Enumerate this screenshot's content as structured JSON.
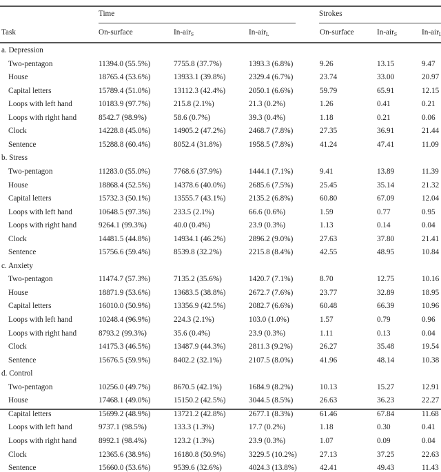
{
  "table": {
    "group_headers": {
      "time": "Time",
      "strokes": "Strokes"
    },
    "columns": {
      "task": "Task",
      "time_on_surface": "On-surface",
      "time_in_air_s": {
        "base": "In-air",
        "sub": "S"
      },
      "time_in_air_l": {
        "base": "In-air",
        "sub": "L"
      },
      "strokes_on_surface": "On-surface",
      "strokes_in_air_s": {
        "base": "In-air",
        "sub": "S"
      },
      "strokes_in_air_l": {
        "base": "In-air",
        "sub": "L"
      }
    },
    "sections": [
      {
        "label": "a. Depression",
        "rows": [
          [
            "Two-pentagon",
            "11394.0 (55.5%)",
            "7755.8 (37.7%)",
            "1393.3 (6.8%)",
            "9.26",
            "13.15",
            "9.47"
          ],
          [
            "House",
            "18765.4 (53.6%)",
            "13933.1 (39.8%)",
            "2329.4 (6.7%)",
            "23.74",
            "33.00",
            "20.97"
          ],
          [
            "Capital letters",
            "15789.4 (51.0%)",
            "13112.3 (42.4%)",
            "2050.1 (6.6%)",
            "59.79",
            "65.91",
            "12.15"
          ],
          [
            "Loops with left hand",
            "10183.9 (97.7%)",
            "215.8 (2.1%)",
            "21.3 (0.2%)",
            "1.26",
            "0.41",
            "0.21"
          ],
          [
            "Loops with right hand",
            "8542.7 (98.9%)",
            "58.6 (0.7%)",
            "39.3 (0.4%)",
            "1.18",
            "0.21",
            "0.06"
          ],
          [
            "Clock",
            "14228.8 (45.0%)",
            "14905.2 (47.2%)",
            "2468.7 (7.8%)",
            "27.35",
            "36.91",
            "21.44"
          ],
          [
            "Sentence",
            "15288.8 (60.4%)",
            "8052.4 (31.8%)",
            "1958.5 (7.8%)",
            "41.24",
            "47.41",
            "11.09"
          ]
        ]
      },
      {
        "label": "b. Stress",
        "rows": [
          [
            "Two-pentagon",
            "11283.0 (55.0%)",
            "7768.6 (37.9%)",
            "1444.1 (7.1%)",
            "9.41",
            "13.89",
            "11.39"
          ],
          [
            "House",
            "18868.4 (52.5%)",
            "14378.6 (40.0%)",
            "2685.6 (7.5%)",
            "25.45",
            "35.14",
            "21.32"
          ],
          [
            "Capital letters",
            "15732.3 (50.1%)",
            "13555.7 (43.1%)",
            "2135.2 (6.8%)",
            "60.80",
            "67.09",
            "12.04"
          ],
          [
            "Loops with left hand",
            "10648.5 (97.3%)",
            "233.5 (2.1%)",
            "66.6 (0.6%)",
            "1.59",
            "0.77",
            "0.95"
          ],
          [
            "Loops with right hand",
            "9264.1 (99.3%)",
            "40.0 (0.4%)",
            "23.9 (0.3%)",
            "1.13",
            "0.14",
            "0.04"
          ],
          [
            "Clock",
            "14481.5 (44.8%)",
            "14934.1 (46.2%)",
            "2896.2 (9.0%)",
            "27.63",
            "37.80",
            "21.41"
          ],
          [
            "Sentence",
            "15756.6 (59.4%)",
            "8539.8 (32.2%)",
            "2215.8 (8.4%)",
            "42.55",
            "48.95",
            "10.84"
          ]
        ]
      },
      {
        "label": "c. Anxiety",
        "rows": [
          [
            "Two-pentagon",
            "11474.7 (57.3%)",
            "7135.2 (35.6%)",
            "1420.7 (7.1%)",
            "8.70",
            "12.75",
            "10.16"
          ],
          [
            "House",
            "18871.9 (53.6%)",
            "13683.5 (38.8%)",
            "2672.7 (7.6%)",
            "23.77",
            "32.89",
            "18.95"
          ],
          [
            "Capital letters",
            "16010.0 (50.9%)",
            "13356.9 (42.5%)",
            "2082.7 (6.6%)",
            "60.48",
            "66.39",
            "10.96"
          ],
          [
            "Loops with left hand",
            "10248.4 (96.9%)",
            "224.3 (2.1%)",
            "103.0 (1.0%)",
            "1.57",
            "0.79",
            "0.96"
          ],
          [
            "Loops with right hand",
            "8793.2 (99.3%)",
            "35.6 (0.4%)",
            "23.9 (0.3%)",
            "1.11",
            "0.13",
            "0.04"
          ],
          [
            "Clock",
            "14175.3 (46.5%)",
            "13487.9 (44.3%)",
            "2811.3 (9.2%)",
            "26.27",
            "35.48",
            "19.54"
          ],
          [
            "Sentence",
            "15676.5 (59.9%)",
            "8402.2 (32.1%)",
            "2107.5 (8.0%)",
            "41.96",
            "48.14",
            "10.38"
          ]
        ]
      },
      {
        "label": "d. Control",
        "rows": [
          [
            "Two-pentagon",
            "10256.0 (49.7%)",
            "8670.5 (42.1%)",
            "1684.9 (8.2%)",
            "10.13",
            "15.27",
            "12.91"
          ],
          [
            "House",
            "17468.1 (49.0%)",
            "15150.2 (42.5%)",
            "3044.5 (8.5%)",
            "26.63",
            "36.23",
            "22.27"
          ],
          [
            "Capital letters",
            "15699.2 (48.9%)",
            "13721.2 (42.8%)",
            "2677.1 (8.3%)",
            "61.46",
            "67.84",
            "11.68"
          ],
          [
            "Loops with left hand",
            "9737.1 (98.5%)",
            "133.3 (1.3%)",
            "17.7 (0.2%)",
            "1.18",
            "0.30",
            "0.41"
          ],
          [
            "Loops with right hand",
            "8992.1 (98.4%)",
            "123.2 (1.3%)",
            "23.9 (0.3%)",
            "1.07",
            "0.09",
            "0.04"
          ],
          [
            "Clock",
            "12365.6 (38.9%)",
            "16180.8 (50.9%)",
            "3229.5 (10.2%)",
            "27.13",
            "37.25",
            "22.63"
          ],
          [
            "Sentence",
            "15660.0 (53.6%)",
            "9539.6 (32.6%)",
            "4024.3 (13.8%)",
            "42.41",
            "49.43",
            "11.43"
          ]
        ]
      }
    ]
  }
}
